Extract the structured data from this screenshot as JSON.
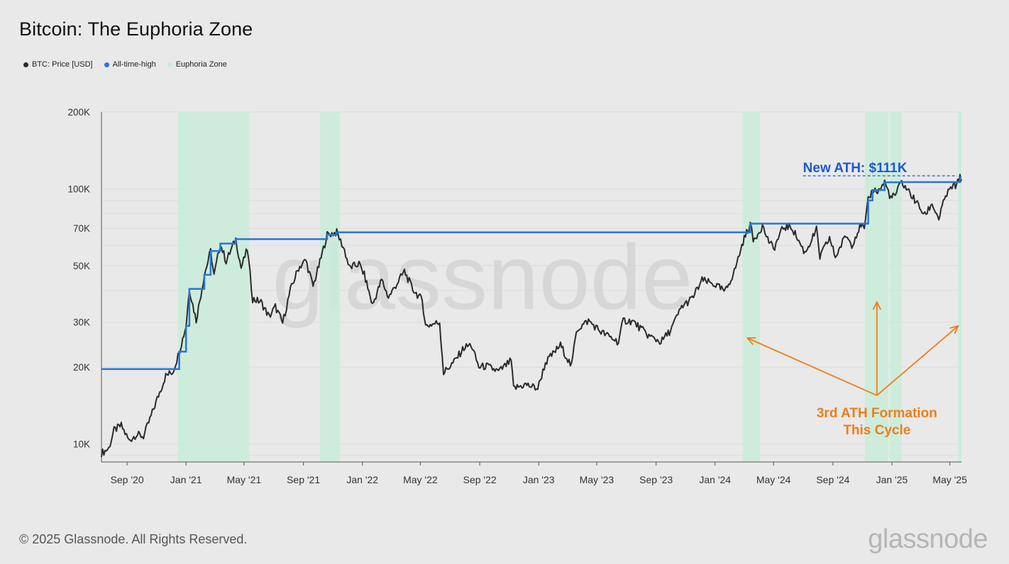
{
  "title": "Bitcoin: The Euphoria Zone",
  "legend": [
    {
      "label": "BTC: Price [USD]",
      "color": "#2b2b2b",
      "icon": "circle-dot"
    },
    {
      "label": "All-time-high",
      "color": "#2b74d6",
      "icon": "circle-dot"
    },
    {
      "label": "Euphoria Zone",
      "color": "#cdebd9",
      "icon": "circle-dot"
    }
  ],
  "watermark": "glassnode",
  "footer": {
    "copyright": "© 2025 Glassnode. All Rights Reserved.",
    "logo": "glassnode"
  },
  "chart_data": {
    "type": "line",
    "title": "Bitcoin: The Euphoria Zone",
    "xlabel": "",
    "ylabel": "",
    "yscale": "log",
    "ylim": [
      8500,
      200000
    ],
    "xlim": [
      "2020-07-10",
      "2025-05-25"
    ],
    "grid": true,
    "legend_position": "top-left",
    "x_ticks": [
      {
        "date": "2020-09-01",
        "label": "Sep '20"
      },
      {
        "date": "2021-01-01",
        "label": "Jan '21"
      },
      {
        "date": "2021-05-01",
        "label": "May '21"
      },
      {
        "date": "2021-09-01",
        "label": "Sep '21"
      },
      {
        "date": "2022-01-01",
        "label": "Jan '22"
      },
      {
        "date": "2022-05-01",
        "label": "May '22"
      },
      {
        "date": "2022-09-01",
        "label": "Sep '22"
      },
      {
        "date": "2023-01-01",
        "label": "Jan '23"
      },
      {
        "date": "2023-05-01",
        "label": "May '23"
      },
      {
        "date": "2023-09-01",
        "label": "Sep '23"
      },
      {
        "date": "2024-01-01",
        "label": "Jan '24"
      },
      {
        "date": "2024-05-01",
        "label": "May '24"
      },
      {
        "date": "2024-09-01",
        "label": "Sep '24"
      },
      {
        "date": "2025-01-01",
        "label": "Jan '25"
      },
      {
        "date": "2025-05-01",
        "label": "May '25"
      }
    ],
    "y_ticks": [
      {
        "value": 10000,
        "label": "10K"
      },
      {
        "value": 20000,
        "label": "20K"
      },
      {
        "value": 30000,
        "label": "30K"
      },
      {
        "value": 50000,
        "label": "50K"
      },
      {
        "value": 70000,
        "label": "70K"
      },
      {
        "value": 100000,
        "label": "100K"
      },
      {
        "value": 200000,
        "label": "200K"
      }
    ],
    "series": [
      {
        "name": "BTC: Price [USD]",
        "color": "#2b2b2b",
        "points": [
          [
            "2020-07-10",
            9200
          ],
          [
            "2020-07-25",
            9600
          ],
          [
            "2020-08-05",
            11300
          ],
          [
            "2020-08-20",
            11800
          ],
          [
            "2020-09-05",
            10300
          ],
          [
            "2020-09-20",
            10900
          ],
          [
            "2020-10-05",
            10700
          ],
          [
            "2020-10-21",
            12900
          ],
          [
            "2020-11-05",
            15500
          ],
          [
            "2020-11-20",
            18500
          ],
          [
            "2020-12-05",
            19200
          ],
          [
            "2020-12-18",
            23000
          ],
          [
            "2021-01-01",
            29000
          ],
          [
            "2021-01-08",
            40500
          ],
          [
            "2021-01-22",
            30500
          ],
          [
            "2021-02-08",
            46000
          ],
          [
            "2021-02-21",
            57000
          ],
          [
            "2021-02-28",
            45500
          ],
          [
            "2021-03-13",
            61000
          ],
          [
            "2021-03-25",
            52000
          ],
          [
            "2021-04-14",
            63500
          ],
          [
            "2021-04-25",
            49000
          ],
          [
            "2021-05-08",
            58000
          ],
          [
            "2021-05-19",
            37000
          ],
          [
            "2021-06-05",
            36000
          ],
          [
            "2021-06-22",
            31500
          ],
          [
            "2021-07-05",
            34500
          ],
          [
            "2021-07-20",
            29800
          ],
          [
            "2021-08-05",
            40000
          ],
          [
            "2021-08-22",
            49000
          ],
          [
            "2021-09-06",
            52500
          ],
          [
            "2021-09-21",
            41500
          ],
          [
            "2021-10-05",
            51500
          ],
          [
            "2021-10-20",
            66000
          ],
          [
            "2021-11-09",
            67500
          ],
          [
            "2021-11-25",
            57500
          ],
          [
            "2021-12-05",
            49000
          ],
          [
            "2021-12-25",
            50800
          ],
          [
            "2022-01-05",
            46000
          ],
          [
            "2022-01-22",
            35000
          ],
          [
            "2022-02-10",
            44000
          ],
          [
            "2022-02-24",
            37500
          ],
          [
            "2022-03-29",
            47500
          ],
          [
            "2022-04-15",
            40500
          ],
          [
            "2022-05-05",
            36500
          ],
          [
            "2022-05-12",
            29000
          ],
          [
            "2022-06-10",
            30000
          ],
          [
            "2022-06-18",
            19000
          ],
          [
            "2022-07-10",
            21000
          ],
          [
            "2022-07-30",
            23800
          ],
          [
            "2022-08-14",
            24500
          ],
          [
            "2022-08-30",
            20000
          ],
          [
            "2022-09-15",
            20200
          ],
          [
            "2022-10-10",
            19200
          ],
          [
            "2022-11-05",
            21200
          ],
          [
            "2022-11-10",
            16500
          ],
          [
            "2022-12-05",
            17100
          ],
          [
            "2022-12-30",
            16500
          ],
          [
            "2023-01-15",
            20800
          ],
          [
            "2023-02-15",
            24400
          ],
          [
            "2023-03-10",
            20100
          ],
          [
            "2023-03-20",
            28000
          ],
          [
            "2023-04-14",
            30400
          ],
          [
            "2023-05-10",
            27500
          ],
          [
            "2023-06-15",
            25100
          ],
          [
            "2023-06-25",
            30500
          ],
          [
            "2023-07-15",
            30200
          ],
          [
            "2023-08-17",
            26500
          ],
          [
            "2023-09-11",
            25100
          ],
          [
            "2023-10-01",
            27900
          ],
          [
            "2023-10-24",
            34500
          ],
          [
            "2023-11-15",
            37200
          ],
          [
            "2023-12-05",
            43800
          ],
          [
            "2023-12-31",
            42200
          ],
          [
            "2024-01-22",
            39500
          ],
          [
            "2024-02-10",
            47500
          ],
          [
            "2024-02-28",
            62000
          ],
          [
            "2024-03-14",
            73000
          ],
          [
            "2024-03-20",
            62500
          ],
          [
            "2024-04-08",
            71600
          ],
          [
            "2024-04-19",
            63500
          ],
          [
            "2024-05-01",
            58000
          ],
          [
            "2024-05-21",
            70500
          ],
          [
            "2024-06-07",
            71000
          ],
          [
            "2024-06-25",
            61000
          ],
          [
            "2024-07-05",
            56000
          ],
          [
            "2024-07-29",
            69000
          ],
          [
            "2024-08-05",
            54000
          ],
          [
            "2024-08-25",
            64200
          ],
          [
            "2024-09-06",
            53900
          ],
          [
            "2024-09-28",
            65800
          ],
          [
            "2024-10-10",
            60400
          ],
          [
            "2024-10-29",
            72500
          ],
          [
            "2024-11-05",
            68800
          ],
          [
            "2024-11-13",
            90000
          ],
          [
            "2024-11-22",
            98800
          ],
          [
            "2024-12-05",
            98200
          ],
          [
            "2024-12-17",
            106100
          ],
          [
            "2024-12-30",
            92000
          ],
          [
            "2025-01-08",
            94500
          ],
          [
            "2025-01-21",
            106200
          ],
          [
            "2025-02-05",
            97500
          ],
          [
            "2025-02-25",
            86000
          ],
          [
            "2025-03-10",
            78500
          ],
          [
            "2025-03-25",
            87500
          ],
          [
            "2025-04-08",
            76300
          ],
          [
            "2025-04-22",
            93500
          ],
          [
            "2025-05-08",
            103000
          ],
          [
            "2025-05-15",
            102800
          ],
          [
            "2025-05-22",
            111000
          ],
          [
            "2025-05-25",
            109000
          ]
        ]
      },
      {
        "name": "All-time-high",
        "color": "#2b74d6",
        "points": [
          [
            "2020-07-10",
            19650
          ],
          [
            "2020-12-16",
            19650
          ],
          [
            "2020-12-18",
            23000
          ],
          [
            "2021-01-01",
            29000
          ],
          [
            "2021-01-08",
            40500
          ],
          [
            "2021-02-08",
            46000
          ],
          [
            "2021-02-21",
            57000
          ],
          [
            "2021-03-13",
            61000
          ],
          [
            "2021-04-14",
            63500
          ],
          [
            "2021-10-20",
            66000
          ],
          [
            "2021-11-09",
            67500
          ],
          [
            "2024-03-05",
            67500
          ],
          [
            "2024-03-14",
            73000
          ],
          [
            "2024-11-11",
            73000
          ],
          [
            "2024-11-13",
            90000
          ],
          [
            "2024-11-22",
            98800
          ],
          [
            "2024-12-17",
            106100
          ],
          [
            "2025-01-21",
            106200
          ],
          [
            "2025-05-20",
            106200
          ],
          [
            "2025-05-22",
            111000
          ],
          [
            "2025-05-25",
            111000
          ]
        ]
      }
    ],
    "euphoria_zones": [
      [
        "2020-12-15",
        "2021-05-12"
      ],
      [
        "2021-10-05",
        "2021-11-16"
      ],
      [
        "2024-02-27",
        "2024-04-03"
      ],
      [
        "2024-11-06",
        "2024-12-25"
      ],
      [
        "2024-12-28",
        "2025-01-21"
      ],
      [
        "2025-05-18",
        "2025-05-25"
      ]
    ],
    "annotations": {
      "ath_label": "New ATH: $111K",
      "ath_value": 111000,
      "ath_line_start": "2024-07-01",
      "formation_line1": "3rd ATH Formation",
      "formation_line2": "This Cycle",
      "arrow_targets": [
        [
          "2024-03-08",
          26000
        ],
        [
          "2024-12-01",
          36000
        ],
        [
          "2025-05-18",
          29000
        ]
      ],
      "arrow_origin": [
        "2024-12-01",
        15500
      ]
    }
  }
}
